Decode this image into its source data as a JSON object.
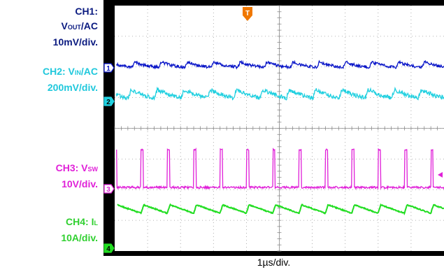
{
  "labels": {
    "ch1_title": "CH1:",
    "ch1_main": "V",
    "ch1_sub": "OUT",
    "ch1_tail": "/AC",
    "ch1_scale": "10mV/div.",
    "ch2_main": "CH2: V",
    "ch2_sub": "IN",
    "ch2_tail": "/AC",
    "ch2_scale": "200mV/div.",
    "ch3_main": "CH3: V",
    "ch3_sub": "SW",
    "ch3_scale": "10V/div.",
    "ch4_main": "CH4: I",
    "ch4_sub": "L",
    "ch4_scale": "10A/div.",
    "xlabel": "1µs/div."
  },
  "colors": {
    "ch1": "#0a16c8",
    "ch2": "#20d0e0",
    "ch3": "#e020d8",
    "ch4": "#22dd22",
    "ch1_label": "#0a1a80",
    "trigger": "#f07800"
  },
  "markers": {
    "ch1": "1",
    "ch2": "2",
    "ch3": "3",
    "ch4": "4",
    "trigger": "T"
  },
  "chart_data": {
    "type": "line",
    "xlabel": "1µs/div.",
    "x_divisions": 10,
    "y_divisions": 8,
    "grid": true,
    "switching_period_div": 0.8,
    "series": [
      {
        "name": "CH1",
        "waveform": "ripple"
      },
      {
        "name": "CH2",
        "waveform": "ripple"
      },
      {
        "name": "CH3",
        "waveform": "pulse"
      },
      {
        "name": "CH4",
        "waveform": "sawtooth"
      }
    ]
  }
}
